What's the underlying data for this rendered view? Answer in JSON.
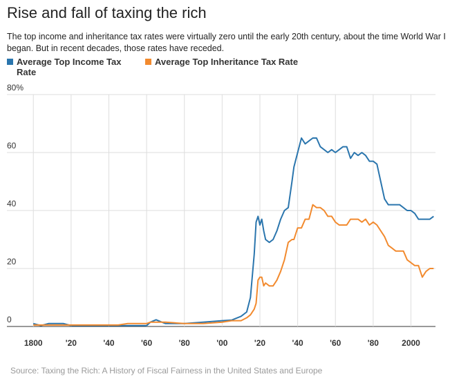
{
  "chart_data": {
    "type": "line",
    "title": "Rise and fall of taxing the rich",
    "subtitle": "The top income and inheritance tax rates were virtually zero until the early 20th century, about the time World War I began. But in recent decades, those rates have receded.",
    "source": "Source: Taxing the Rich: A History of Fiscal Fairness in the United States and Europe",
    "x": [
      1800,
      1804,
      1808,
      1812,
      1816,
      1820,
      1830,
      1840,
      1845,
      1850,
      1860,
      1862,
      1865,
      1868,
      1870,
      1880,
      1890,
      1900,
      1905,
      1910,
      1913,
      1915,
      1917,
      1918,
      1919,
      1920,
      1921,
      1922,
      1923,
      1925,
      1927,
      1929,
      1931,
      1933,
      1935,
      1937,
      1938,
      1940,
      1942,
      1944,
      1946,
      1948,
      1950,
      1952,
      1954,
      1956,
      1958,
      1960,
      1962,
      1964,
      1966,
      1968,
      1970,
      1972,
      1974,
      1976,
      1978,
      1980,
      1982,
      1984,
      1986,
      1988,
      1990,
      1992,
      1994,
      1996,
      1998,
      2000,
      2002,
      2004,
      2006,
      2008,
      2010,
      2012
    ],
    "series": [
      {
        "name": "Average Top Income Tax Rate",
        "color": "#2a75ad",
        "values": [
          1,
          0.3,
          1,
          1,
          1,
          0.3,
          0.3,
          0.3,
          0.3,
          0.3,
          0.3,
          1.5,
          2.3,
          1.5,
          1,
          1,
          1.5,
          2,
          2.2,
          3.5,
          5,
          10,
          25,
          36,
          38,
          35,
          37,
          33,
          30,
          29,
          30,
          33,
          37,
          40,
          41,
          50,
          55,
          60,
          65,
          63,
          64,
          65,
          65,
          62,
          61,
          60,
          61,
          60,
          61,
          62,
          62,
          58,
          60,
          59,
          60,
          59,
          57,
          57,
          56,
          50,
          44,
          42,
          42,
          42,
          42,
          41,
          40,
          40,
          39,
          37,
          37,
          37,
          37,
          38
        ]
      },
      {
        "name": "Average Top Inheritance Tax Rate",
        "color": "#f28a2e",
        "values": [
          0.5,
          0.5,
          0.5,
          0.5,
          0.5,
          0.5,
          0.5,
          0.5,
          0.5,
          1,
          1,
          1.5,
          1.5,
          1.5,
          1.5,
          1,
          1,
          1.5,
          2,
          2,
          3,
          4,
          6,
          8,
          16,
          17,
          17,
          14,
          15,
          14,
          14,
          16,
          19,
          23,
          29,
          30,
          30,
          34,
          34,
          37,
          37,
          42,
          41,
          41,
          40,
          38,
          38,
          36,
          35,
          35,
          35,
          37,
          37,
          37,
          36,
          37,
          35,
          36,
          35,
          33,
          31,
          28,
          27,
          26,
          26,
          26,
          23,
          22,
          21,
          21,
          17,
          19,
          20,
          20
        ]
      }
    ],
    "xlim": [
      1786,
      2013
    ],
    "xticks": [
      1800,
      {
        "value": 1820,
        "label": "'20"
      },
      {
        "value": 1840,
        "label": "'40"
      },
      {
        "value": 1860,
        "label": "'60"
      },
      {
        "value": 1880,
        "label": "'80"
      },
      {
        "value": 1900,
        "label": "'00"
      },
      {
        "value": 1920,
        "label": "'20"
      },
      {
        "value": 1940,
        "label": "'40"
      },
      {
        "value": 1960,
        "label": "'60"
      },
      {
        "value": 1980,
        "label": "'80"
      },
      2000
    ],
    "ylim": [
      0,
      80
    ],
    "yticks": [
      0,
      20,
      40,
      60,
      {
        "value": 80,
        "label": "80%"
      }
    ],
    "grid": true
  }
}
